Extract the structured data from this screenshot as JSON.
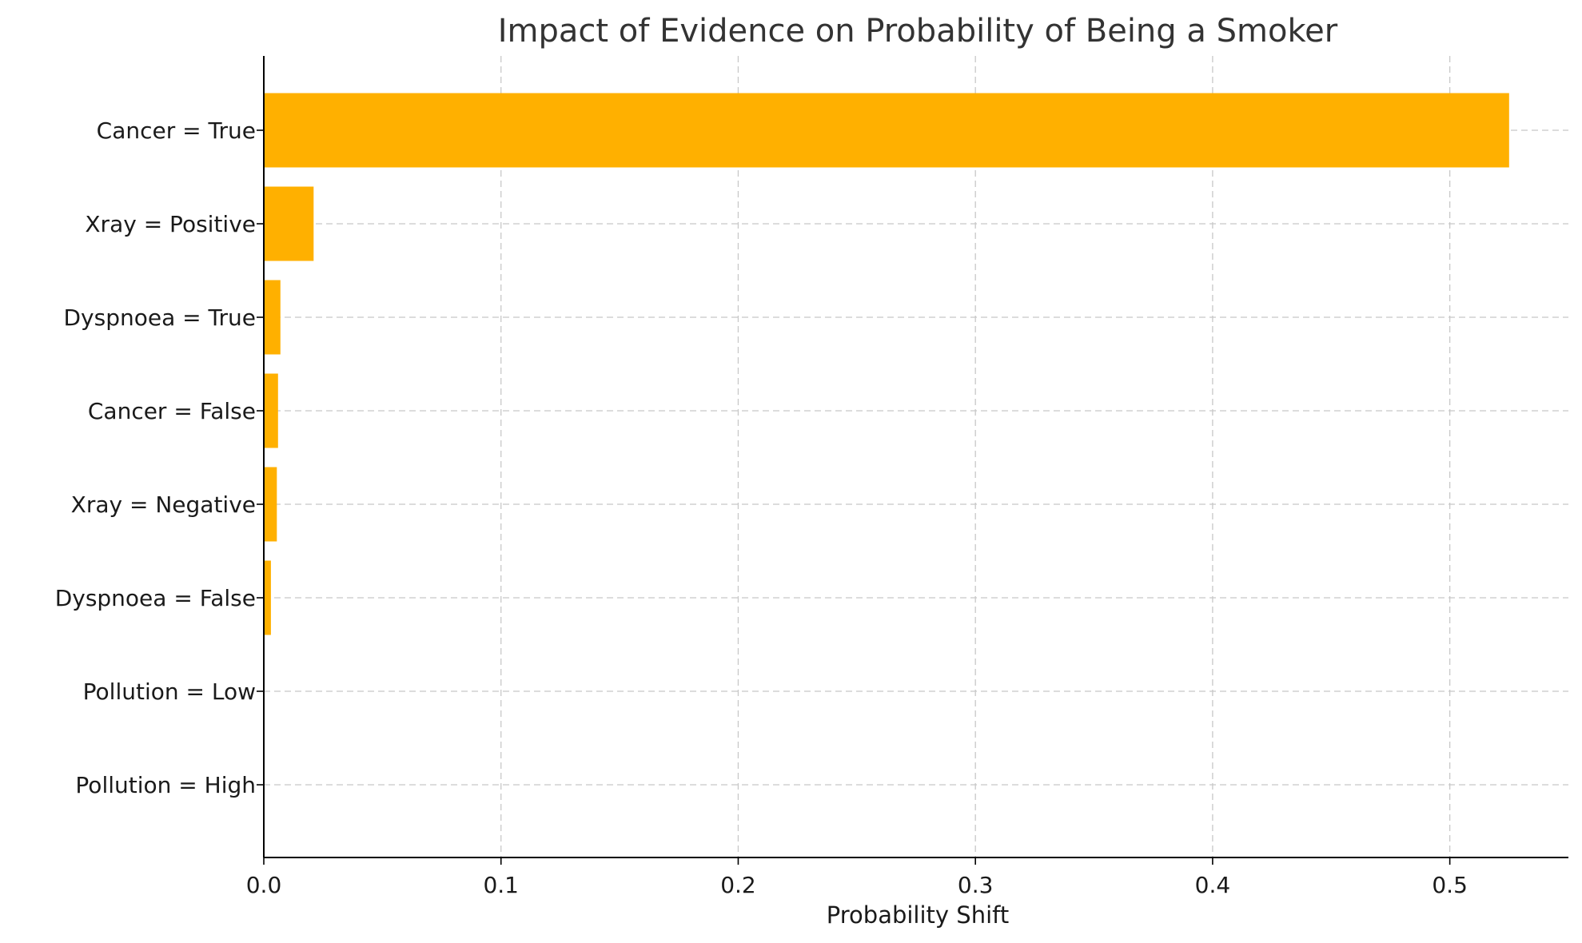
{
  "chart_data": {
    "type": "bar",
    "orientation": "horizontal",
    "title": "Impact of Evidence on Probability of Being a Smoker",
    "xlabel": "Probability Shift",
    "ylabel": "",
    "categories": [
      "Cancer = True",
      "Xray = Positive",
      "Dyspnoea = True",
      "Cancer = False",
      "Xray = Negative",
      "Dyspnoea = False",
      "Pollution = Low",
      "Pollution = High"
    ],
    "values": [
      0.525,
      0.021,
      0.007,
      0.006,
      0.0055,
      0.003,
      0.0,
      0.0
    ],
    "xlim": [
      0,
      0.55
    ],
    "xticks": [
      0.0,
      0.1,
      0.2,
      0.3,
      0.4,
      0.5
    ],
    "xtick_labels": [
      "0.0",
      "0.1",
      "0.2",
      "0.3",
      "0.4",
      "0.5"
    ],
    "grid": true,
    "bar_color": "#ffb000",
    "legend": "none"
  }
}
